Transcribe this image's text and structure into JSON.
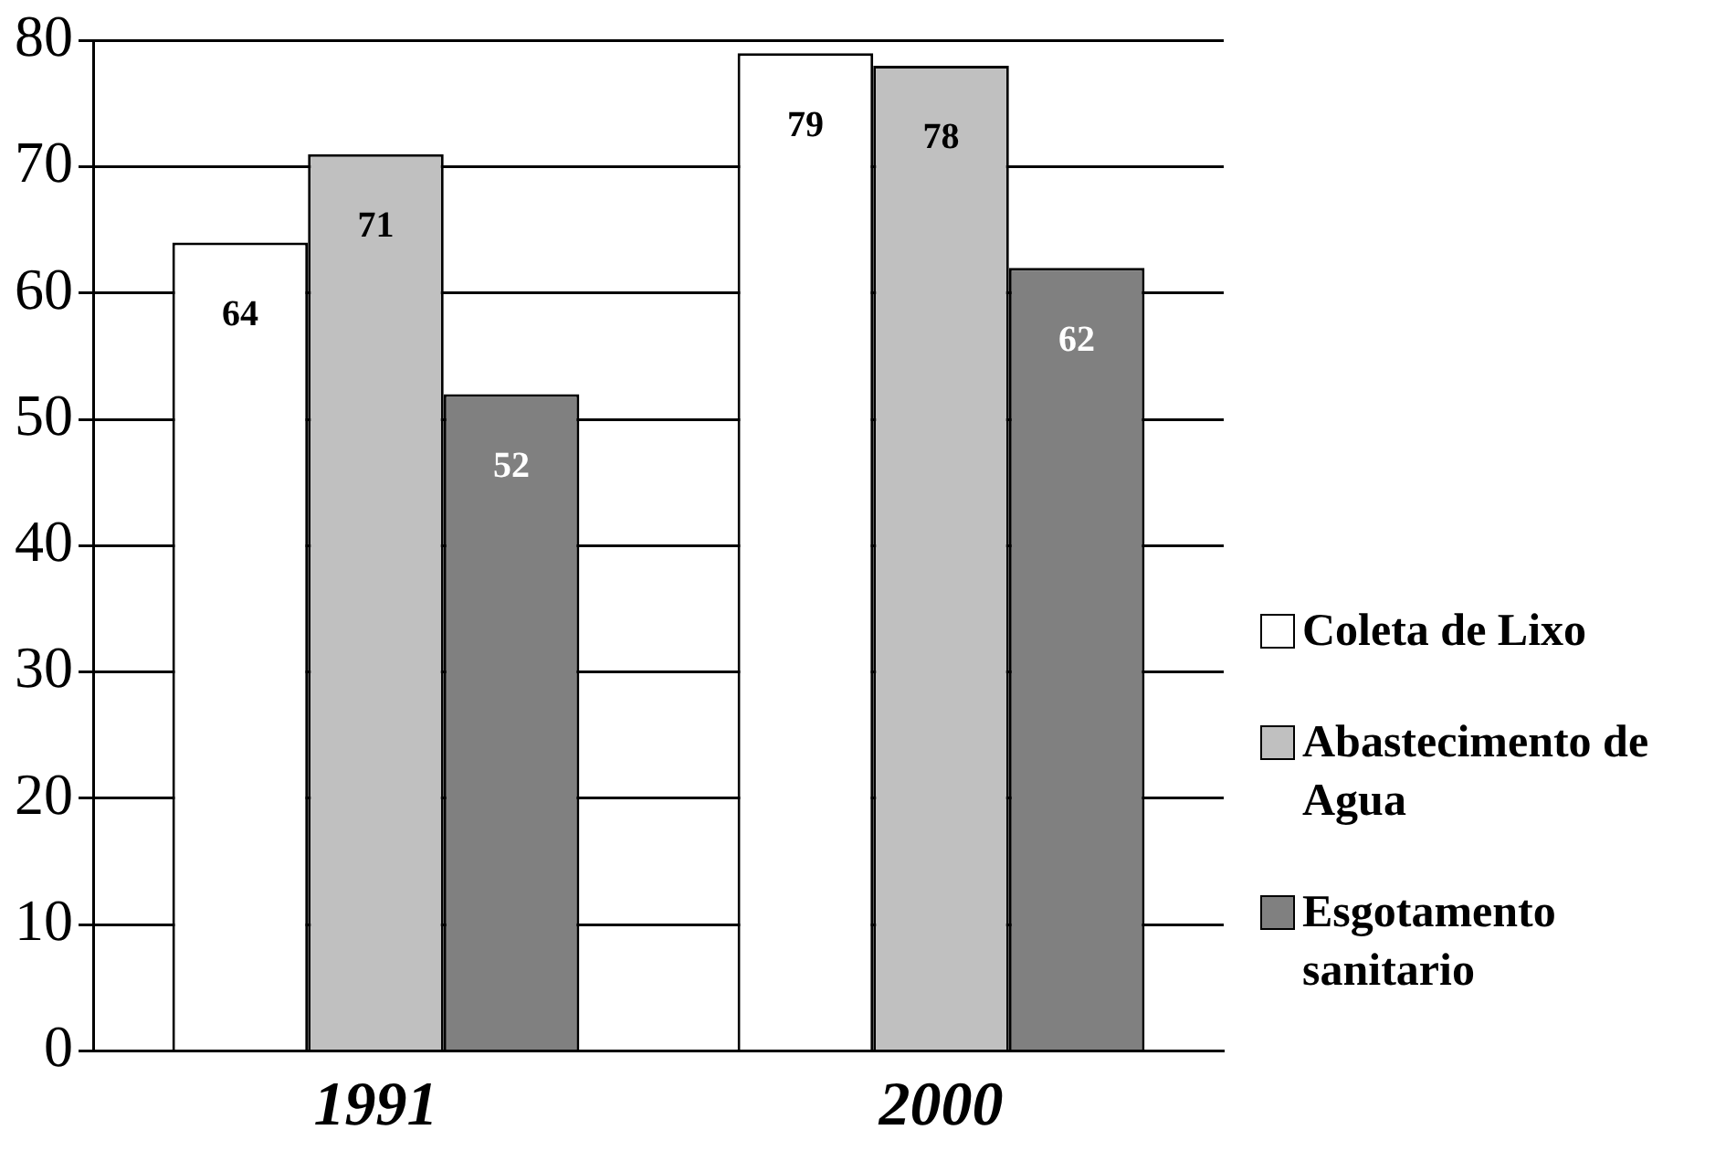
{
  "chart_data": {
    "type": "bar",
    "categories": [
      "1991",
      "2000"
    ],
    "series": [
      {
        "name": "Coleta de Lixo",
        "color": "#ffffff",
        "values": [
          64,
          79
        ]
      },
      {
        "name": "Abastecimento de Agua",
        "color": "#c0c0c0",
        "values": [
          71,
          78
        ]
      },
      {
        "name": "Esgotamento sanitario",
        "color": "#808080",
        "values": [
          52,
          62
        ]
      }
    ],
    "ylim": [
      0,
      80
    ],
    "yticks": [
      0,
      10,
      20,
      30,
      40,
      50,
      60,
      70,
      80
    ],
    "grid": "y",
    "legend": "right",
    "data_labels": true
  }
}
